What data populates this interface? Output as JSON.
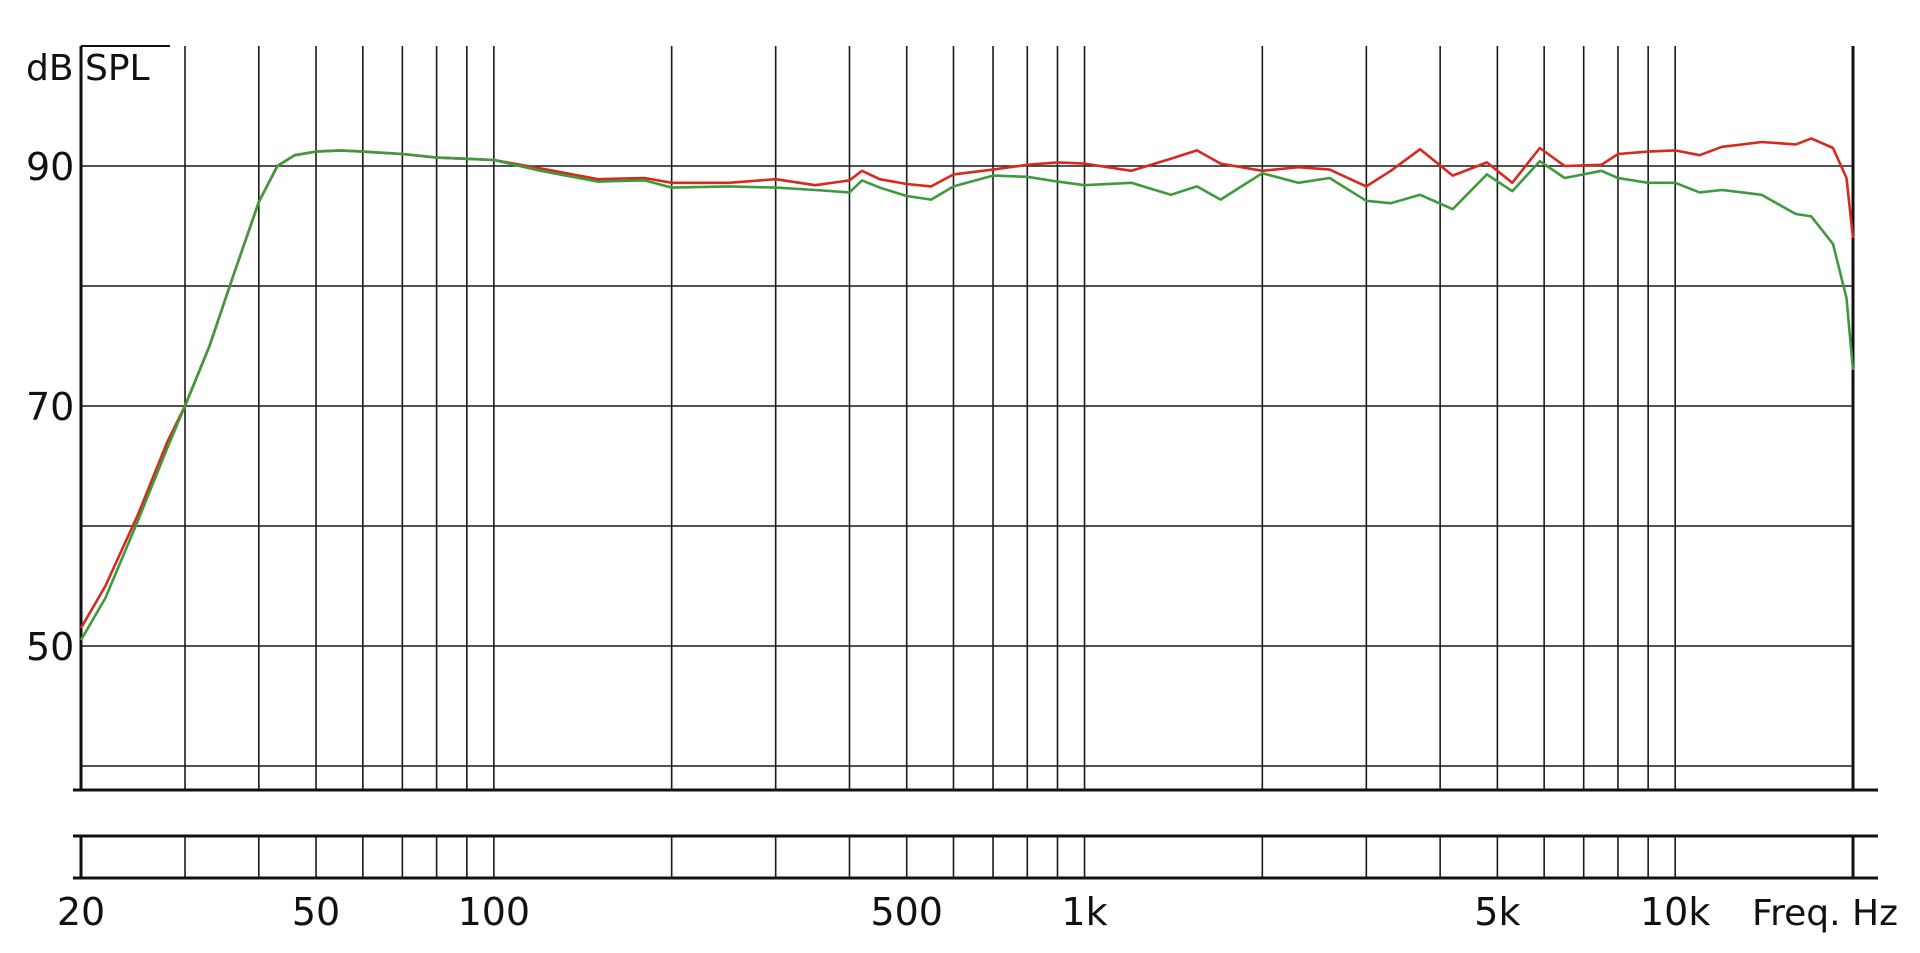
{
  "chart_data": {
    "type": "line",
    "title": "",
    "ylabel": "dB SPL",
    "xlabel": "Freq. Hz",
    "x_scale": "log",
    "xlim": [
      20,
      20000
    ],
    "ylim": [
      38,
      100
    ],
    "y_gridlines": [
      40,
      50,
      60,
      70,
      80,
      90
    ],
    "y_tick_labels": [
      {
        "value": 50,
        "label": "50"
      },
      {
        "value": 70,
        "label": "70"
      },
      {
        "value": 90,
        "label": "90"
      }
    ],
    "x_gridlines": [
      20,
      30,
      40,
      50,
      60,
      70,
      80,
      90,
      100,
      200,
      300,
      400,
      500,
      600,
      700,
      800,
      900,
      1000,
      2000,
      3000,
      4000,
      5000,
      6000,
      7000,
      8000,
      9000,
      10000,
      20000
    ],
    "x_tick_labels": [
      {
        "value": 20,
        "label": "20"
      },
      {
        "value": 50,
        "label": "50"
      },
      {
        "value": 100,
        "label": "100"
      },
      {
        "value": 500,
        "label": "500"
      },
      {
        "value": 1000,
        "label": "1k"
      },
      {
        "value": 5000,
        "label": "5k"
      },
      {
        "value": 10000,
        "label": "10k"
      }
    ],
    "grid": true,
    "legend": "none",
    "series": [
      {
        "color": "#d62a1e",
        "points": [
          [
            20,
            51.5
          ],
          [
            22,
            55
          ],
          [
            25,
            61
          ],
          [
            28,
            67
          ],
          [
            30,
            70
          ],
          [
            33,
            75
          ],
          [
            36,
            80.5
          ],
          [
            40,
            87
          ],
          [
            43,
            90
          ],
          [
            46,
            90.9
          ],
          [
            50,
            91.2
          ],
          [
            55,
            91.3
          ],
          [
            60,
            91.2
          ],
          [
            70,
            91.0
          ],
          [
            80,
            90.7
          ],
          [
            90,
            90.6
          ],
          [
            100,
            90.5
          ],
          [
            120,
            89.8
          ],
          [
            150,
            88.9
          ],
          [
            180,
            89.0
          ],
          [
            200,
            88.6
          ],
          [
            250,
            88.6
          ],
          [
            300,
            88.9
          ],
          [
            350,
            88.4
          ],
          [
            400,
            88.8
          ],
          [
            420,
            89.6
          ],
          [
            450,
            88.9
          ],
          [
            500,
            88.5
          ],
          [
            550,
            88.3
          ],
          [
            600,
            89.3
          ],
          [
            700,
            89.7
          ],
          [
            800,
            90.1
          ],
          [
            900,
            90.3
          ],
          [
            1000,
            90.2
          ],
          [
            1200,
            89.6
          ],
          [
            1400,
            90.6
          ],
          [
            1550,
            91.3
          ],
          [
            1700,
            90.2
          ],
          [
            2000,
            89.6
          ],
          [
            2300,
            89.9
          ],
          [
            2600,
            89.7
          ],
          [
            3000,
            88.3
          ],
          [
            3300,
            89.6
          ],
          [
            3700,
            91.4
          ],
          [
            4200,
            89.2
          ],
          [
            4800,
            90.3
          ],
          [
            5300,
            88.6
          ],
          [
            5900,
            91.5
          ],
          [
            6500,
            90.0
          ],
          [
            7500,
            90.1
          ],
          [
            8000,
            91.0
          ],
          [
            9000,
            91.2
          ],
          [
            10000,
            91.3
          ],
          [
            11000,
            90.9
          ],
          [
            12000,
            91.6
          ],
          [
            13000,
            91.8
          ],
          [
            14000,
            92.0
          ],
          [
            16000,
            91.8
          ],
          [
            17000,
            92.3
          ],
          [
            18500,
            91.5
          ],
          [
            19500,
            89.0
          ],
          [
            20000,
            84.0
          ]
        ]
      },
      {
        "color": "#3e9a3c",
        "points": [
          [
            20,
            50.5
          ],
          [
            22,
            54
          ],
          [
            25,
            60.5
          ],
          [
            28,
            66.5
          ],
          [
            30,
            70
          ],
          [
            33,
            75
          ],
          [
            36,
            80.5
          ],
          [
            40,
            87
          ],
          [
            43,
            90
          ],
          [
            46,
            90.9
          ],
          [
            50,
            91.2
          ],
          [
            55,
            91.3
          ],
          [
            60,
            91.2
          ],
          [
            70,
            91.0
          ],
          [
            80,
            90.7
          ],
          [
            90,
            90.6
          ],
          [
            100,
            90.5
          ],
          [
            120,
            89.6
          ],
          [
            150,
            88.7
          ],
          [
            180,
            88.8
          ],
          [
            200,
            88.2
          ],
          [
            250,
            88.3
          ],
          [
            300,
            88.2
          ],
          [
            350,
            88.0
          ],
          [
            400,
            87.8
          ],
          [
            420,
            88.8
          ],
          [
            450,
            88.2
          ],
          [
            500,
            87.5
          ],
          [
            550,
            87.2
          ],
          [
            600,
            88.3
          ],
          [
            700,
            89.2
          ],
          [
            800,
            89.1
          ],
          [
            900,
            88.7
          ],
          [
            1000,
            88.4
          ],
          [
            1200,
            88.6
          ],
          [
            1400,
            87.6
          ],
          [
            1550,
            88.3
          ],
          [
            1700,
            87.2
          ],
          [
            2000,
            89.4
          ],
          [
            2300,
            88.6
          ],
          [
            2600,
            89.0
          ],
          [
            3000,
            87.1
          ],
          [
            3300,
            86.9
          ],
          [
            3700,
            87.6
          ],
          [
            4200,
            86.4
          ],
          [
            4800,
            89.3
          ],
          [
            5300,
            87.9
          ],
          [
            5900,
            90.4
          ],
          [
            6500,
            89.0
          ],
          [
            7500,
            89.6
          ],
          [
            8000,
            89.0
          ],
          [
            9000,
            88.6
          ],
          [
            10000,
            88.6
          ],
          [
            11000,
            87.8
          ],
          [
            12000,
            88.0
          ],
          [
            13000,
            87.8
          ],
          [
            14000,
            87.6
          ],
          [
            16000,
            86.0
          ],
          [
            17000,
            85.8
          ],
          [
            18500,
            83.5
          ],
          [
            19500,
            79.0
          ],
          [
            20000,
            73.0
          ]
        ]
      }
    ]
  }
}
